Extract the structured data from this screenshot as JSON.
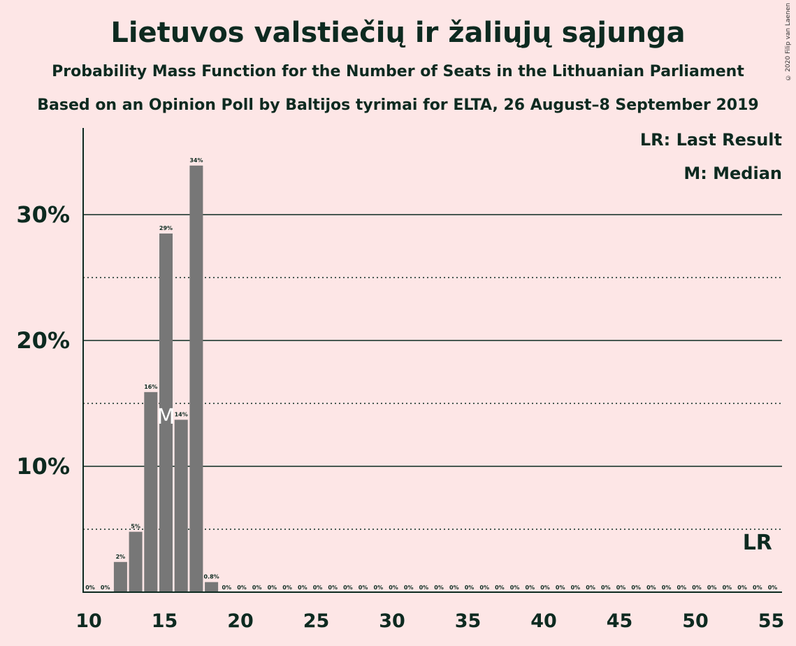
{
  "chart_data": {
    "type": "bar",
    "title": "Lietuvos valstiečių ir žaliųjų sąjunga",
    "subtitle": "Probability Mass Function for the Number of Seats in the Lithuanian Parliament",
    "subtitle2": "Based on an Opinion Poll by Baltijos tyrimai for ELTA, 26 August–8 September 2019",
    "copyright": "© 2020 Filip van Laenen",
    "legend": {
      "last_result": "LR: Last Result",
      "median": "M: Median"
    },
    "x": [
      10,
      11,
      12,
      13,
      14,
      15,
      16,
      17,
      18,
      19,
      20,
      21,
      22,
      23,
      24,
      25,
      26,
      27,
      28,
      29,
      30,
      31,
      32,
      33,
      34,
      35,
      36,
      37,
      38,
      39,
      40,
      41,
      42,
      43,
      44,
      45,
      46,
      47,
      48,
      49,
      50,
      51,
      52,
      53,
      54,
      55
    ],
    "values": [
      0,
      0,
      2.4,
      4.8,
      15.9,
      28.5,
      13.7,
      33.9,
      0.8,
      0,
      0,
      0,
      0,
      0,
      0,
      0,
      0,
      0,
      0,
      0,
      0,
      0,
      0,
      0,
      0,
      0,
      0,
      0,
      0,
      0,
      0,
      0,
      0,
      0,
      0,
      0,
      0,
      0,
      0,
      0,
      0,
      0,
      0,
      0,
      0,
      0
    ],
    "labels": [
      "0%",
      "0%",
      "2%",
      "5%",
      "16%",
      "29%",
      "14%",
      "34%",
      "0.8%",
      "0%",
      "0%",
      "0%",
      "0%",
      "0%",
      "0%",
      "0%",
      "0%",
      "0%",
      "0%",
      "0%",
      "0%",
      "0%",
      "0%",
      "0%",
      "0%",
      "0%",
      "0%",
      "0%",
      "0%",
      "0%",
      "0%",
      "0%",
      "0%",
      "0%",
      "0%",
      "0%",
      "0%",
      "0%",
      "0%",
      "0%",
      "0%",
      "0%",
      "0%",
      "0%",
      "0%",
      "0%"
    ],
    "xticks": [
      10,
      15,
      20,
      25,
      30,
      35,
      40,
      45,
      50,
      55
    ],
    "yticks": [
      {
        "value": 10,
        "label": "10%"
      },
      {
        "value": 20,
        "label": "20%"
      },
      {
        "value": 30,
        "label": "30%"
      }
    ],
    "dotted_gridlines": [
      5,
      15,
      25
    ],
    "ylim": [
      0,
      37
    ],
    "median": {
      "x": 15,
      "label": "M"
    },
    "last_result": {
      "x": 54,
      "label": "LR"
    },
    "bar_color": "#777777",
    "grid_color": "#0d2a20",
    "background": "#fde6e6"
  }
}
